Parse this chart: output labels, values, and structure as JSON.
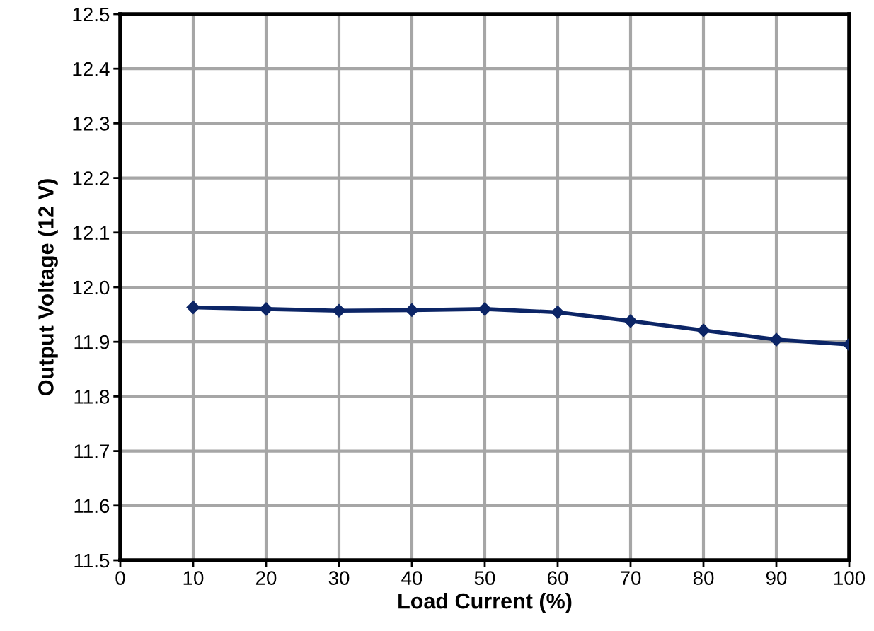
{
  "chart_data": {
    "type": "line",
    "xlabel": "Load Current (%)",
    "ylabel": "Output Voltage (12 V)",
    "x": [
      10,
      20,
      30,
      40,
      50,
      60,
      70,
      80,
      90,
      100
    ],
    "series": [
      {
        "color": "#0c2566",
        "values": [
          11.963,
          11.96,
          11.957,
          11.958,
          11.96,
          11.954,
          11.938,
          11.921,
          11.904,
          11.895
        ]
      }
    ],
    "xlim": [
      0,
      100
    ],
    "xticks": [
      0,
      10,
      20,
      30,
      40,
      50,
      60,
      70,
      80,
      90,
      100
    ],
    "ylim": [
      11.5,
      12.5
    ],
    "yticks": [
      {
        "value": 11.5,
        "label": "11.5"
      },
      {
        "value": 11.6,
        "label": "11.6"
      },
      {
        "value": 11.7,
        "label": "11.7"
      },
      {
        "value": 11.8,
        "label": "11.8"
      },
      {
        "value": 11.9,
        "label": "11.9"
      },
      {
        "value": 12.0,
        "label": "12.0"
      },
      {
        "value": 12.1,
        "label": "12.1"
      },
      {
        "value": 12.2,
        "label": "12.2"
      },
      {
        "value": 12.3,
        "label": "12.3"
      },
      {
        "value": 12.4,
        "label": "12.4"
      },
      {
        "value": 12.5,
        "label": "12.5"
      }
    ],
    "grid": true,
    "marker": "diamond",
    "line_style": "solid",
    "legend": false
  }
}
